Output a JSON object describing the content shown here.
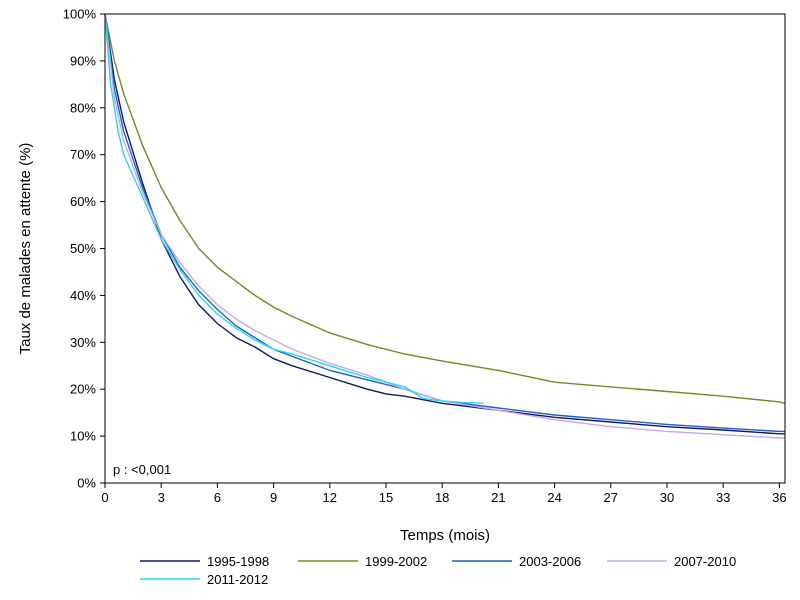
{
  "chart_data": {
    "type": "line",
    "xlabel": "Temps (mois)",
    "ylabel": "Taux de malades en attente (%)",
    "xlim": [
      0,
      36.3
    ],
    "ylim": [
      0,
      100
    ],
    "xticks": [
      0,
      3,
      6,
      9,
      12,
      15,
      18,
      21,
      24,
      27,
      30,
      33,
      36
    ],
    "yticks": [
      0,
      10,
      20,
      30,
      40,
      50,
      60,
      70,
      80,
      90,
      100
    ],
    "ytick_labels": [
      "0%",
      "10%",
      "20%",
      "30%",
      "40%",
      "50%",
      "60%",
      "70%",
      "80%",
      "90%",
      "100%"
    ],
    "grid": false,
    "legend_position": "bottom",
    "annotation": "p : <0,001",
    "series": [
      {
        "name": "1995-1998",
        "color": "#0c1a6e",
        "x": [
          0,
          0.5,
          1,
          2,
          3,
          4,
          5,
          6,
          7,
          8,
          9,
          10,
          12,
          14,
          15,
          16,
          18,
          21,
          24,
          27,
          30,
          33,
          36,
          36.3
        ],
        "y": [
          100,
          86,
          77,
          64,
          52,
          44,
          38,
          34,
          31,
          29,
          26.5,
          25,
          22.5,
          20,
          19,
          18.5,
          17,
          15.5,
          14,
          13,
          12,
          11.3,
          10.5,
          10.5
        ]
      },
      {
        "name": "1999-2002",
        "color": "#6a8e23",
        "x": [
          0,
          0.5,
          1,
          2,
          3,
          4,
          5,
          6,
          7,
          8,
          9,
          10,
          12,
          14,
          15,
          16,
          18,
          21,
          24,
          27,
          30,
          33,
          36,
          36.3
        ],
        "y": [
          100,
          90,
          83,
          72,
          63,
          56,
          50,
          46,
          43,
          40,
          37.5,
          35.5,
          32,
          29.5,
          28.5,
          27.5,
          26,
          24,
          21.5,
          20.5,
          19.5,
          18.5,
          17.3,
          17
        ]
      },
      {
        "name": "2003-2006",
        "color": "#1f62c4",
        "x": [
          0,
          0.5,
          1,
          2,
          3,
          4,
          5,
          6,
          7,
          8,
          9,
          10,
          12,
          14,
          15,
          16,
          18,
          21,
          24,
          27,
          30,
          33,
          36,
          36.3
        ],
        "y": [
          100,
          84,
          75,
          63,
          53,
          46,
          41,
          37,
          33.5,
          31,
          28.5,
          27,
          24,
          22,
          21,
          20,
          17.5,
          16,
          14.5,
          13.5,
          12.5,
          11.7,
          11,
          11
        ]
      },
      {
        "name": "2007-2010",
        "color": "#c6a8e8",
        "x": [
          0,
          0.5,
          1,
          2,
          3,
          4,
          5,
          6,
          7,
          8,
          9,
          10,
          12,
          14,
          15,
          16,
          18,
          21,
          24,
          27,
          30,
          33,
          36,
          36.3
        ],
        "y": [
          100,
          82,
          73,
          62,
          53,
          47,
          42,
          38,
          35,
          32.5,
          30.5,
          28.5,
          25.5,
          23,
          21.5,
          20,
          17.5,
          15.5,
          13.5,
          12,
          11,
          10.3,
          9.6,
          9.6
        ]
      },
      {
        "name": "2011-2012",
        "color": "#22d8f0",
        "x": [
          0,
          0.3,
          0.7,
          1,
          2,
          3,
          4,
          5,
          6,
          7,
          8,
          9,
          10,
          12,
          14,
          15,
          16,
          17,
          18,
          19,
          20.2
        ],
        "y": [
          100,
          85,
          75,
          70,
          61,
          52,
          45.5,
          40,
          36,
          33,
          30.5,
          28.5,
          27.5,
          25,
          22.5,
          21.5,
          20.5,
          18,
          17.5,
          17.2,
          17
        ]
      }
    ]
  }
}
